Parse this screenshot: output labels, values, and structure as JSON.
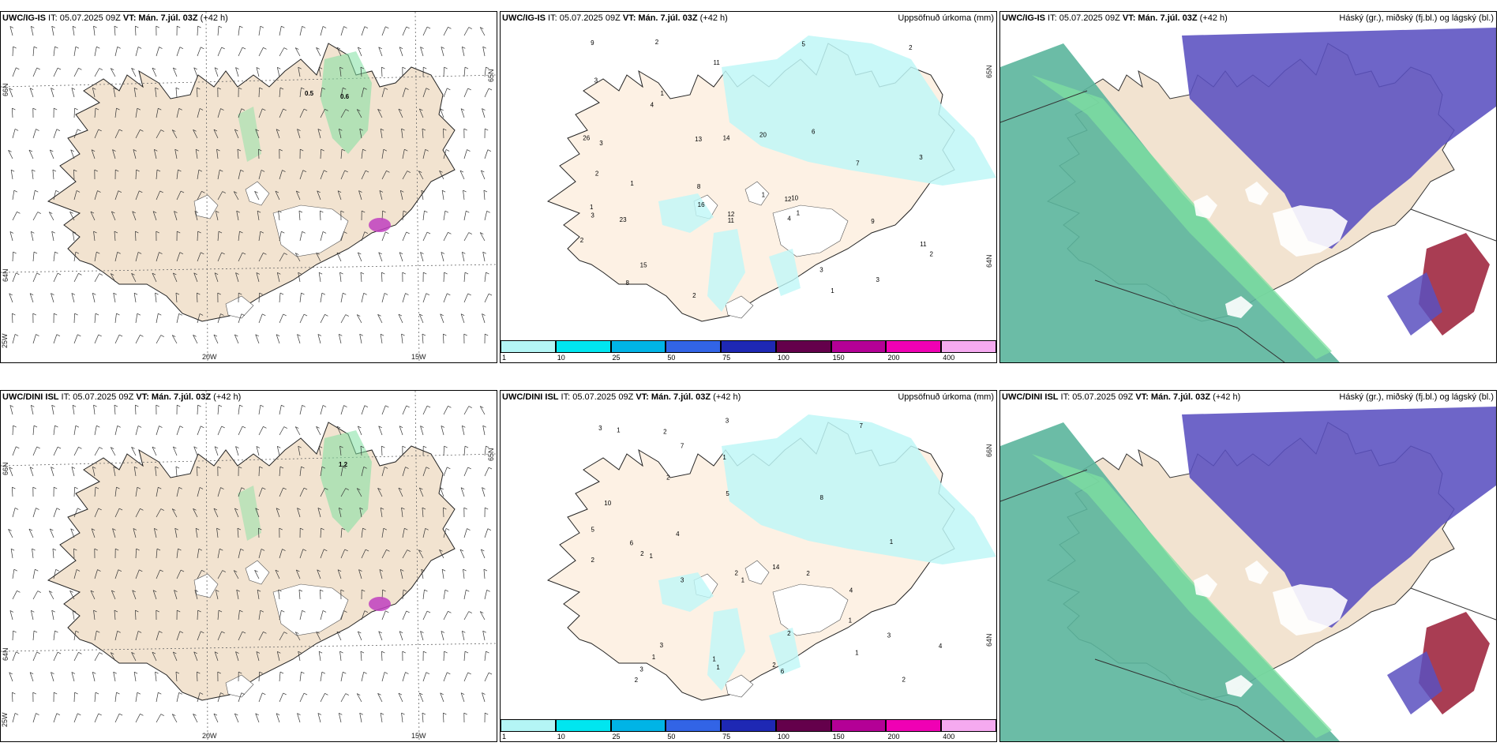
{
  "panels": [
    {
      "model": "UWC/IG-IS",
      "it_label": "IT:",
      "it": "05.07.2025 09Z",
      "vt_label": "VT:",
      "vt": "Mán. 7.júl. 03Z",
      "lead": "(+42 h)",
      "right_title": "",
      "kind": "wind",
      "values": [
        {
          "t": "0.5"
        },
        {
          "t": "0.6"
        }
      ],
      "lat_labels": [
        "66N",
        "64N"
      ],
      "lon_labels": [
        "25W",
        "20W",
        "15W"
      ],
      "extra_lat": "65N"
    },
    {
      "model": "UWC/IG-IS",
      "it_label": "IT:",
      "it": "05.07.2025 09Z",
      "vt_label": "VT:",
      "vt": "Mán. 7.júl. 03Z",
      "lead": "(+42 h)",
      "right_title": "Uppsöfnuð úrkoma (mm)",
      "kind": "precip",
      "values": [
        "1",
        "3",
        "2",
        "4",
        "8",
        "14",
        "7",
        "10",
        "13",
        "20",
        "15",
        "26",
        "23",
        "12",
        "9",
        "11",
        "6",
        "3",
        "2",
        "4",
        "1",
        "12",
        "11",
        "8",
        "9",
        "5",
        "3",
        "2",
        "1",
        "2",
        "3",
        "16",
        "11",
        "3",
        "1",
        "2",
        "1",
        "2",
        "3",
        "1"
      ],
      "lat_labels": [
        "65N",
        "64N"
      ]
    },
    {
      "model": "UWC/IG-IS",
      "it_label": "IT:",
      "it": "05.07.2025 09Z",
      "vt_label": "VT:",
      "vt": "Mán. 7.júl. 03Z",
      "lead": "(+42 h)",
      "right_title": "Háský (gr.), miðský (fj.bl.) og lágský (bl.)",
      "kind": "cloud"
    },
    {
      "model": "UWC/DINI ISL",
      "it_label": "IT:",
      "it": "05.07.2025 09Z",
      "vt_label": "VT:",
      "vt": "Mán. 7.júl. 03Z",
      "lead": "(+42 h)",
      "right_title": "",
      "kind": "wind",
      "values": [
        {
          "t": "1.2"
        }
      ],
      "lat_labels": [
        "66N",
        "64N"
      ],
      "lon_labels": [
        "25W",
        "20W",
        "15W"
      ],
      "extra_lat": "65N"
    },
    {
      "model": "UWC/DINI ISL",
      "it_label": "IT:",
      "it": "05.07.2025 09Z",
      "vt_label": "VT:",
      "vt": "Mán. 7.júl. 03Z",
      "lead": "(+42 h)",
      "right_title": "Uppsöfnuð úrkoma (mm)",
      "kind": "precip",
      "values": [
        "1",
        "6",
        "4",
        "14",
        "10",
        "3",
        "4",
        "2",
        "3",
        "2",
        "3",
        "7",
        "6",
        "2",
        "5",
        "4",
        "2",
        "1",
        "3",
        "3",
        "1",
        "8",
        "2",
        "1",
        "2",
        "1",
        "2",
        "1",
        "3",
        "2",
        "1",
        "7",
        "5",
        "2",
        "1",
        "1",
        "2",
        "1"
      ],
      "lat_labels": [
        "66N",
        "64N"
      ]
    },
    {
      "model": "UWC/DINI ISL",
      "it_label": "IT:",
      "it": "05.07.2025 09Z",
      "vt_label": "VT:",
      "vt": "Mán. 7.júl. 03Z",
      "lead": "(+42 h)",
      "right_title": "Háský (gr.), miðský (fj.bl.) og lágský (bl.)",
      "kind": "cloud"
    }
  ],
  "colorbar": {
    "ticks": [
      "1",
      "10",
      "25",
      "50",
      "75",
      "100",
      "150",
      "200",
      "400"
    ],
    "colors": [
      "#b4f5f5",
      "#00e6f0",
      "#00b4e6",
      "#3264e6",
      "#1e28b4",
      "#64004b",
      "#b40096",
      "#f000b4",
      "#f5aaf0"
    ]
  },
  "colors": {
    "land": "#f2e3d0",
    "land_precip": "#fdf1e4",
    "glacier": "#ffffff",
    "cloud_high": "#5bb59c",
    "cloud_mid": "#5a50c0",
    "cloud_low": "#a02840",
    "green": "#7fe0a0"
  }
}
